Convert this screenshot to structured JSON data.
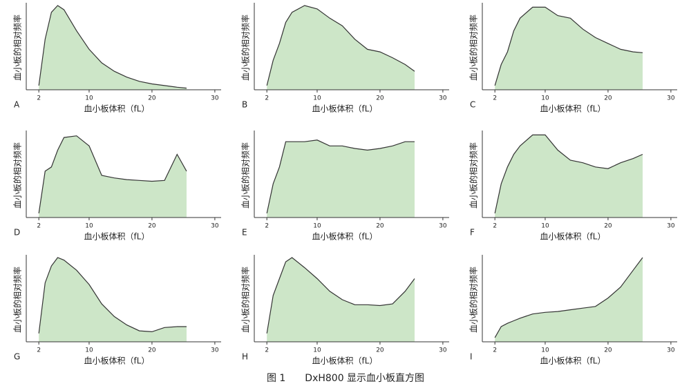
{
  "chart_data": [
    {
      "type": "area",
      "panel": "A",
      "ylabel": "血小板的相对频率",
      "xlabel": "血小板体积（fL）",
      "color": "#cde6c8",
      "xlim": [
        0,
        31
      ],
      "ylim": [
        0,
        100
      ],
      "xticks": [
        2,
        10,
        20,
        30
      ],
      "x": [
        2,
        3,
        4,
        5,
        6,
        8,
        10,
        12,
        14,
        16,
        18,
        20,
        22,
        24,
        25.5
      ],
      "values": [
        5,
        60,
        92,
        100,
        95,
        70,
        48,
        32,
        22,
        15,
        10,
        7,
        5,
        3,
        2
      ]
    },
    {
      "type": "area",
      "panel": "B",
      "ylabel": "血小板的相对频率",
      "xlabel": "血小板体积（fL）",
      "color": "#cde6c8",
      "xlim": [
        0,
        31
      ],
      "ylim": [
        0,
        100
      ],
      "xticks": [
        2,
        10,
        20,
        30
      ],
      "x": [
        2,
        3,
        4,
        5,
        6,
        8,
        10,
        12,
        14,
        16,
        18,
        20,
        22,
        24,
        25.5
      ],
      "values": [
        5,
        35,
        55,
        80,
        92,
        100,
        96,
        85,
        76,
        60,
        48,
        45,
        38,
        30,
        22
      ]
    },
    {
      "type": "area",
      "panel": "C",
      "ylabel": "血小板的相对频率",
      "xlabel": "血小板体积（fL）",
      "color": "#cde6c8",
      "xlim": [
        0,
        31
      ],
      "ylim": [
        0,
        100
      ],
      "xticks": [
        2,
        10,
        20,
        30
      ],
      "x": [
        2,
        3,
        4,
        5,
        6,
        8,
        10,
        12,
        14,
        16,
        18,
        20,
        22,
        24,
        25.5
      ],
      "values": [
        5,
        30,
        45,
        70,
        85,
        98,
        98,
        88,
        85,
        72,
        62,
        55,
        48,
        45,
        44
      ]
    },
    {
      "type": "area",
      "panel": "D",
      "ylabel": "血小板的相对频率",
      "xlabel": "血小板体积（fL）",
      "color": "#cde6c8",
      "xlim": [
        0,
        31
      ],
      "ylim": [
        0,
        100
      ],
      "xticks": [
        2,
        10,
        20,
        30
      ],
      "x": [
        2,
        3,
        4,
        5,
        6,
        8,
        10,
        12,
        14,
        16,
        18,
        20,
        22,
        24,
        25.5
      ],
      "values": [
        5,
        55,
        60,
        80,
        95,
        97,
        85,
        50,
        47,
        45,
        44,
        43,
        44,
        75,
        55
      ]
    },
    {
      "type": "area",
      "panel": "E",
      "ylabel": "血小板的相对频率",
      "xlabel": "血小板体积（fL）",
      "color": "#cde6c8",
      "xlim": [
        0,
        31
      ],
      "ylim": [
        0,
        100
      ],
      "xticks": [
        2,
        10,
        20,
        30
      ],
      "x": [
        2,
        3,
        4,
        5,
        6,
        8,
        10,
        12,
        14,
        16,
        18,
        20,
        22,
        24,
        25.5
      ],
      "values": [
        5,
        40,
        60,
        90,
        90,
        90,
        92,
        85,
        85,
        82,
        80,
        82,
        85,
        90,
        90
      ]
    },
    {
      "type": "area",
      "panel": "F",
      "ylabel": "血小板的相对频率",
      "xlabel": "血小板体积（fL）",
      "color": "#cde6c8",
      "xlim": [
        0,
        31
      ],
      "ylim": [
        0,
        100
      ],
      "xticks": [
        2,
        10,
        20,
        30
      ],
      "x": [
        2,
        3,
        4,
        5,
        6,
        8,
        10,
        12,
        14,
        16,
        18,
        20,
        22,
        24,
        25.5
      ],
      "values": [
        5,
        40,
        60,
        75,
        85,
        98,
        98,
        80,
        68,
        65,
        60,
        58,
        65,
        70,
        75
      ]
    },
    {
      "type": "area",
      "panel": "G",
      "ylabel": "血小板的相对频率",
      "xlabel": "血小板体积（fL）",
      "color": "#cde6c8",
      "xlim": [
        0,
        31
      ],
      "ylim": [
        0,
        100
      ],
      "xticks": [
        2,
        10,
        20,
        30
      ],
      "x": [
        2,
        3,
        4,
        5,
        6,
        8,
        10,
        12,
        14,
        16,
        18,
        20,
        22,
        24,
        25.5
      ],
      "values": [
        10,
        70,
        90,
        100,
        97,
        85,
        68,
        45,
        30,
        20,
        13,
        12,
        17,
        18,
        18
      ]
    },
    {
      "type": "area",
      "panel": "H",
      "ylabel": "血小板的相对频率",
      "xlabel": "血小板体积（fL）",
      "color": "#cde6c8",
      "xlim": [
        0,
        31
      ],
      "ylim": [
        0,
        100
      ],
      "xticks": [
        2,
        10,
        20,
        30
      ],
      "x": [
        2,
        3,
        4,
        5,
        6,
        8,
        10,
        12,
        14,
        16,
        18,
        20,
        22,
        24,
        25.5
      ],
      "values": [
        10,
        55,
        75,
        95,
        100,
        88,
        75,
        60,
        50,
        44,
        44,
        43,
        45,
        60,
        75
      ]
    },
    {
      "type": "area",
      "panel": "I",
      "ylabel": "血小板的相对频率",
      "xlabel": "血小板体积（fL）",
      "color": "#cde6c8",
      "xlim": [
        0,
        31
      ],
      "ylim": [
        0,
        100
      ],
      "xticks": [
        2,
        10,
        20,
        30
      ],
      "x": [
        2,
        3,
        4,
        5,
        6,
        8,
        10,
        12,
        14,
        16,
        18,
        20,
        22,
        24,
        25.5
      ],
      "values": [
        5,
        18,
        22,
        25,
        28,
        33,
        35,
        36,
        38,
        40,
        42,
        52,
        65,
        85,
        100
      ]
    }
  ],
  "caption": "图 1　　DxH800 显示血小板直方图"
}
